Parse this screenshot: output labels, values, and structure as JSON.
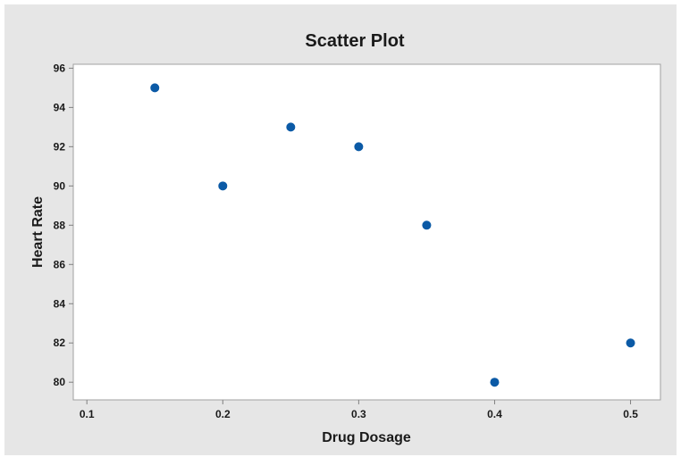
{
  "chart_data": {
    "type": "scatter",
    "title": "Scatter Plot",
    "xlabel": "Drug Dosage",
    "ylabel": "Heart Rate",
    "xlim": [
      0.09,
      0.522
    ],
    "ylim": [
      79.1,
      96.2
    ],
    "xticks": [
      0.1,
      0.2,
      0.3,
      0.4,
      0.5
    ],
    "yticks": [
      80,
      82,
      84,
      86,
      88,
      90,
      92,
      94,
      96
    ],
    "xtick_labels": [
      "0.1",
      "0.2",
      "0.3",
      "0.4",
      "0.5"
    ],
    "ytick_labels": [
      "80",
      "82",
      "84",
      "86",
      "88",
      "90",
      "92",
      "94",
      "96"
    ],
    "grid": false,
    "legend": "none",
    "colors": {
      "outer_background": "#e6e6e6",
      "plot_background": "#ffffff",
      "frame": "#a0a0a0",
      "marker": "#0b5aa6"
    },
    "points": [
      {
        "x": 0.15,
        "y": 95
      },
      {
        "x": 0.2,
        "y": 90
      },
      {
        "x": 0.25,
        "y": 93
      },
      {
        "x": 0.3,
        "y": 92
      },
      {
        "x": 0.35,
        "y": 88
      },
      {
        "x": 0.4,
        "y": 80
      },
      {
        "x": 0.5,
        "y": 82
      }
    ]
  }
}
